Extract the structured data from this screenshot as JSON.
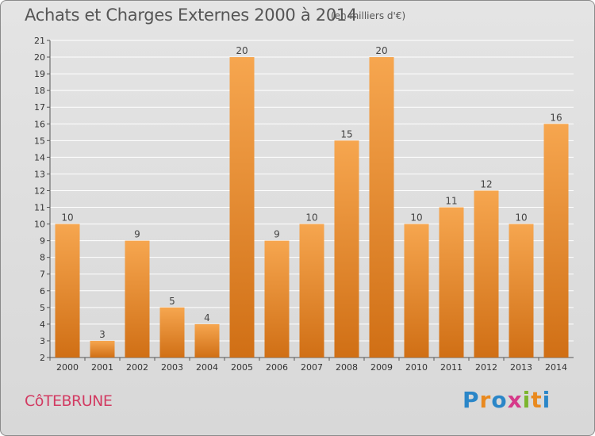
{
  "header": {
    "title": "Achats et Charges Externes 2000 à 2014",
    "subtitle": "(en milliers d'€)"
  },
  "commune": "CôTEBRUNE",
  "logo": {
    "letters": [
      "P",
      "r",
      "o",
      "x",
      "i",
      "t",
      "i"
    ],
    "colors": [
      "#2a86c8",
      "#e9891e",
      "#2a86c8",
      "#d63a8a",
      "#7bb52d",
      "#e9891e",
      "#2a86c8"
    ]
  },
  "chart_data": {
    "type": "bar",
    "categories": [
      "2000",
      "2001",
      "2002",
      "2003",
      "2004",
      "2005",
      "2006",
      "2007",
      "2008",
      "2009",
      "2010",
      "2011",
      "2012",
      "2013",
      "2014"
    ],
    "values": [
      10,
      3,
      9,
      5,
      4,
      20,
      9,
      10,
      15,
      20,
      10,
      11,
      12,
      10,
      16
    ],
    "ylim": [
      2,
      21
    ],
    "yticks": [
      2,
      3,
      4,
      5,
      6,
      7,
      8,
      9,
      10,
      11,
      12,
      13,
      14,
      15,
      16,
      17,
      18,
      19,
      20,
      21
    ],
    "grid": true,
    "bar_color_top": "#f6a64f",
    "bar_color_bottom": "#d06f15",
    "title": "Achats et Charges Externes 2000 à 2014",
    "xlabel": "",
    "ylabel": ""
  }
}
